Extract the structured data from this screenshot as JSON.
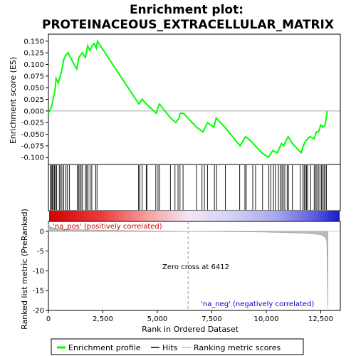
{
  "chart_data": {
    "type": "line",
    "title_line1": "Enrichment plot:",
    "title_line2": "PROTEINACEOUS_EXTRACELLULAR_MATRIX",
    "top_panel": {
      "ylabel": "Enrichment score (ES)",
      "ylim": [
        -0.115,
        0.165
      ],
      "yticks": [
        0.15,
        0.125,
        0.1,
        0.075,
        0.05,
        0.025,
        0.0,
        -0.025,
        -0.05,
        -0.075,
        -0.1
      ],
      "ytick_labels": [
        "0.150",
        "0.125",
        "0.100",
        "0.075",
        "0.050",
        "0.025",
        "0.000",
        "-0.025",
        "-0.050",
        "-0.075",
        "-0.100"
      ],
      "series_name": "Enrichment profile",
      "series_color": "#00ff00",
      "x": [
        0,
        150,
        300,
        350,
        450,
        600,
        700,
        800,
        900,
        1300,
        1400,
        1550,
        1700,
        1800,
        1900,
        2000,
        2100,
        2200,
        2250,
        4150,
        4300,
        4500,
        4950,
        5050,
        5100,
        5600,
        5850,
        6000,
        6050,
        6200,
        6800,
        7100,
        7300,
        7600,
        7700,
        8100,
        8800,
        9050,
        9300,
        9500,
        9800,
        10100,
        10300,
        10500,
        10700,
        10800,
        11000,
        11200,
        11600,
        11700,
        11800,
        12000,
        12200,
        12300,
        12400,
        12500,
        12600,
        12700,
        12800
      ],
      "y": [
        -0.005,
        0.01,
        0.045,
        0.07,
        0.06,
        0.085,
        0.11,
        0.12,
        0.125,
        0.09,
        0.115,
        0.125,
        0.115,
        0.14,
        0.13,
        0.14,
        0.145,
        0.135,
        0.15,
        0.015,
        0.025,
        0.015,
        -0.005,
        0.01,
        0.015,
        -0.015,
        -0.025,
        -0.015,
        -0.005,
        -0.005,
        -0.035,
        -0.045,
        -0.025,
        -0.035,
        -0.015,
        -0.035,
        -0.075,
        -0.055,
        -0.065,
        -0.075,
        -0.09,
        -0.1,
        -0.085,
        -0.09,
        -0.07,
        -0.075,
        -0.055,
        -0.07,
        -0.09,
        -0.075,
        -0.065,
        -0.055,
        -0.06,
        -0.045,
        -0.045,
        -0.03,
        -0.035,
        -0.03,
        0.0
      ],
      "hits": [
        80,
        140,
        180,
        230,
        280,
        330,
        380,
        500,
        560,
        620,
        700,
        790,
        860,
        960,
        1330,
        1380,
        1440,
        1500,
        1560,
        1700,
        1760,
        1820,
        1910,
        1990,
        2170,
        2230,
        4140,
        4190,
        4300,
        4490,
        4520,
        4930,
        5030,
        5100,
        5600,
        5810,
        5950,
        6040,
        6180,
        6800,
        7050,
        7160,
        7300,
        7620,
        7720,
        8120,
        8780,
        9020,
        9080,
        9380,
        9510,
        9830,
        10120,
        10210,
        10330,
        10420,
        10560,
        10640,
        10720,
        10780,
        10850,
        10960,
        11020,
        11200,
        11560,
        11680,
        11740,
        11790,
        11850,
        11900,
        12040,
        12200,
        12260,
        12320,
        12390,
        12460,
        12530,
        12590,
        12650,
        12700,
        12760
      ]
    },
    "ranked_panel": {
      "ylabel": "Ranked list metric (PreRanked)",
      "ylim": [
        -20,
        2.5
      ],
      "yticks": [
        0,
        -5,
        -10,
        -15,
        -20
      ],
      "ytick_labels": [
        "0",
        "-5",
        "-10",
        "-15",
        "-20"
      ],
      "zero_cross_text": "Zero cross at 6412",
      "zero_cross": 6412,
      "pos_label": "'na_pos' (positively correlated)",
      "neg_label": "'na_neg' (negatively correlated)",
      "metric_profile": {
        "x": [
          0,
          50,
          200,
          500,
          1000,
          2000,
          3000,
          4000,
          5000,
          6000,
          6412,
          7000,
          8000,
          9000,
          10000,
          11000,
          12000,
          12500,
          12600,
          12700,
          12780,
          12800,
          12830
        ],
        "y": [
          2.0,
          1.2,
          0.9,
          0.6,
          0.45,
          0.32,
          0.22,
          0.15,
          0.08,
          0.03,
          0.0,
          -0.04,
          -0.08,
          -0.13,
          -0.2,
          -0.32,
          -0.55,
          -0.85,
          -1.1,
          -1.5,
          -2.5,
          -8.0,
          -19.5
        ]
      }
    },
    "xlabel": "Rank in Ordered Dataset",
    "xlim": [
      0,
      13400
    ],
    "xticks": [
      0,
      2500,
      5000,
      7500,
      10000,
      12500
    ],
    "xtick_labels": [
      "0",
      "2,500",
      "5,000",
      "7,500",
      "10,000",
      "12,500"
    ],
    "legend": [
      {
        "label": "Enrichment profile",
        "color": "#00ff00"
      },
      {
        "label": "Hits",
        "color": "#000000"
      },
      {
        "label": "Ranking metric scores",
        "color": "#bbbbbb"
      }
    ]
  }
}
